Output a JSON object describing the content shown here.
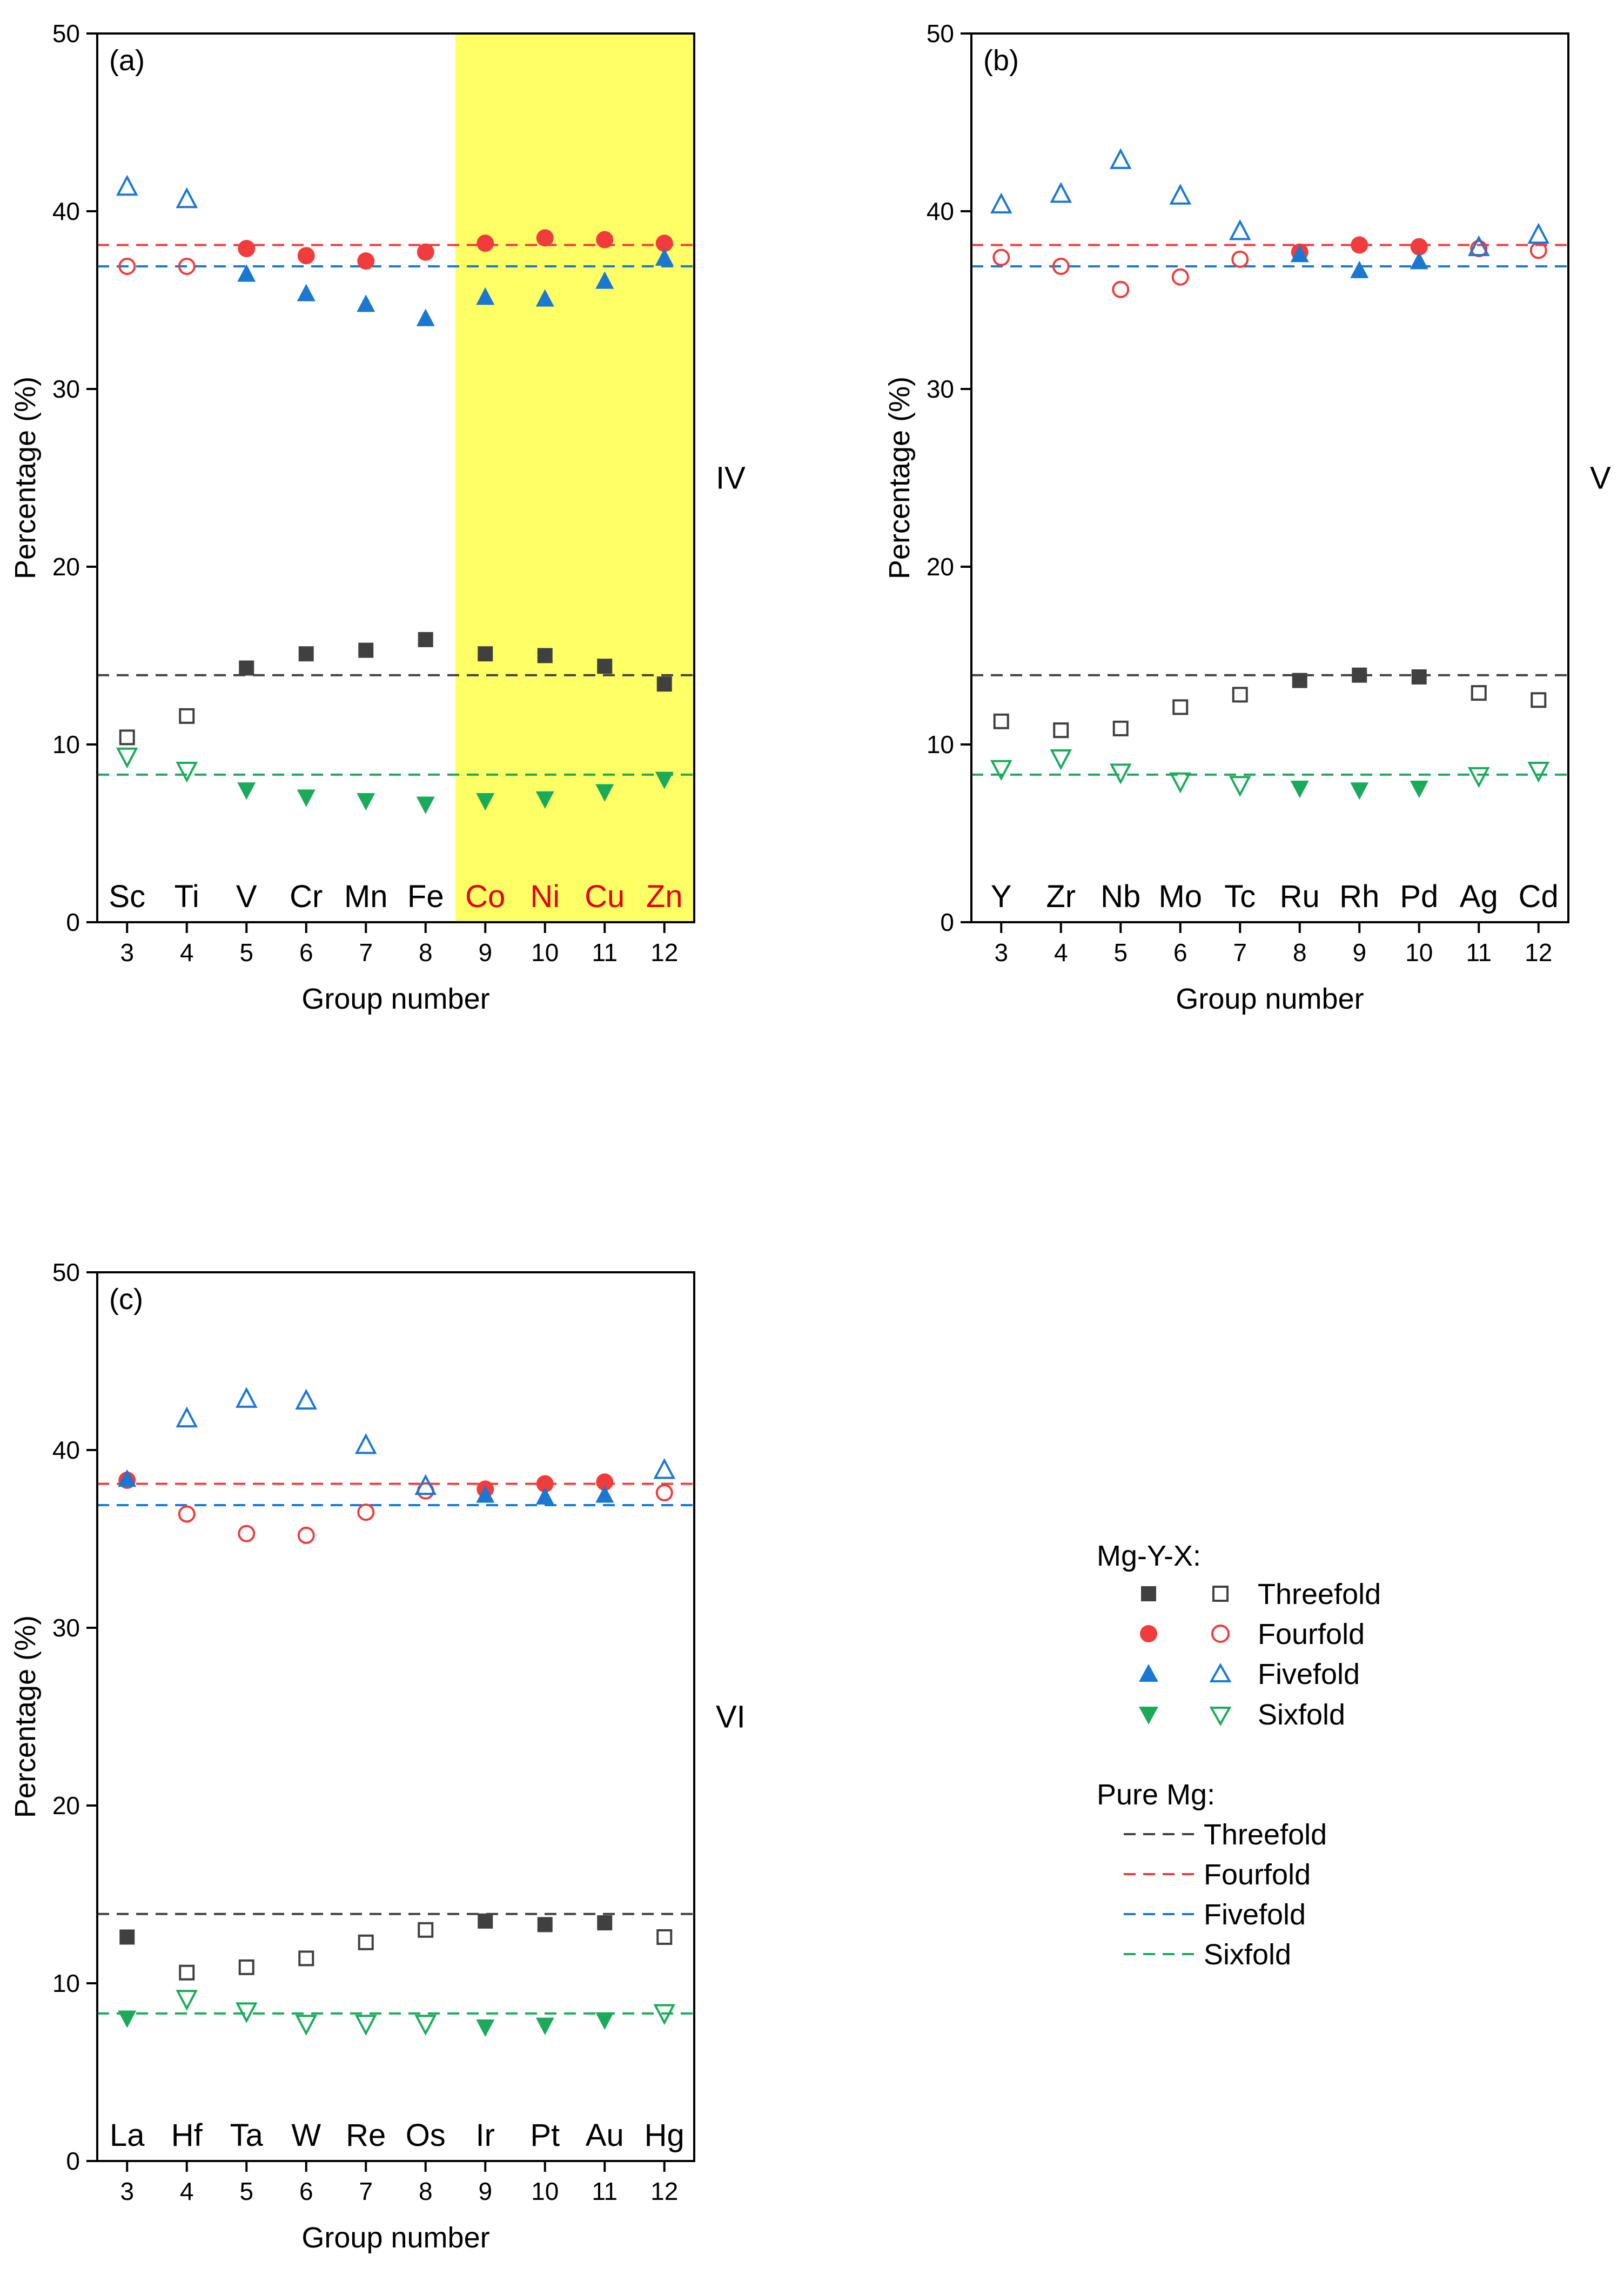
{
  "figure": {
    "legend": {
      "title_doped": "Mg-Y-X:",
      "title_pure": "Pure Mg:",
      "threefold": "Threefold",
      "fourfold": "Fourfold",
      "fivefold": "Fivefold",
      "sixfold": "Sixfold"
    }
  },
  "colors": {
    "threefold": "#404040",
    "fourfold": "#f03c3c",
    "fivefold": "#1a78d2",
    "sixfold": "#1aab5a",
    "highlight": "#ffff66",
    "highlight_text": "#e60000"
  },
  "chart_data": [
    {
      "type": "scatter",
      "panel_label": "(a)",
      "period_label": "IV",
      "xlabel": "Group number",
      "ylabel": "Percentage (%)",
      "xlim": [
        2.5,
        12.5
      ],
      "ylim": [
        0,
        50
      ],
      "x_ticks": [
        3,
        4,
        5,
        6,
        7,
        8,
        9,
        10,
        11,
        12
      ],
      "x_tick_labels": [
        "3",
        "4",
        "5",
        "6",
        "7",
        "8",
        "9",
        "10",
        "11",
        "12"
      ],
      "y_ticks": [
        0,
        10,
        20,
        30,
        40,
        50
      ],
      "y_tick_labels": [
        "0",
        "10",
        "20",
        "30",
        "40",
        "50"
      ],
      "elements": [
        "Sc",
        "Ti",
        "V",
        "Cr",
        "Mn",
        "Fe",
        "Co",
        "Ni",
        "Cu",
        "Zn"
      ],
      "highlight_range": [
        8.5,
        12.5
      ],
      "highlight_elements": [
        "Co",
        "Ni",
        "Cu",
        "Zn"
      ],
      "filled": [
        false,
        false,
        true,
        true,
        true,
        true,
        true,
        true,
        true,
        true
      ],
      "series": [
        {
          "name": "Threefold",
          "values": [
            10.4,
            11.6,
            14.3,
            15.1,
            15.3,
            15.9,
            15.1,
            15.0,
            14.4,
            13.4
          ]
        },
        {
          "name": "Fourfold",
          "values": [
            36.9,
            36.9,
            37.9,
            37.5,
            37.2,
            37.7,
            38.2,
            38.5,
            38.4,
            38.2
          ]
        },
        {
          "name": "Fivefold",
          "values": [
            41.4,
            40.7,
            36.5,
            35.4,
            34.8,
            34.0,
            35.2,
            35.1,
            36.1,
            37.4
          ]
        },
        {
          "name": "Sixfold",
          "values": [
            9.3,
            8.5,
            7.4,
            7.0,
            6.8,
            6.6,
            6.8,
            6.9,
            7.3,
            8.0
          ]
        }
      ],
      "reference_lines": [
        {
          "name": "Threefold",
          "value": 13.9
        },
        {
          "name": "Fourfold",
          "value": 38.1
        },
        {
          "name": "Fivefold",
          "value": 36.9
        },
        {
          "name": "Sixfold",
          "value": 8.3
        }
      ]
    },
    {
      "type": "scatter",
      "panel_label": "(b)",
      "period_label": "V",
      "xlabel": "Group number",
      "ylabel": "Percentage (%)",
      "xlim": [
        2.5,
        12.5
      ],
      "ylim": [
        0,
        50
      ],
      "x_ticks": [
        3,
        4,
        5,
        6,
        7,
        8,
        9,
        10,
        11,
        12
      ],
      "x_tick_labels": [
        "3",
        "4",
        "5",
        "6",
        "7",
        "8",
        "9",
        "10",
        "11",
        "12"
      ],
      "y_ticks": [
        0,
        10,
        20,
        30,
        40,
        50
      ],
      "y_tick_labels": [
        "0",
        "10",
        "20",
        "30",
        "40",
        "50"
      ],
      "elements": [
        "Y",
        "Zr",
        "Nb",
        "Mo",
        "Tc",
        "Ru",
        "Rh",
        "Pd",
        "Ag",
        "Cd"
      ],
      "highlight_range": null,
      "highlight_elements": [],
      "filled": [
        false,
        false,
        false,
        false,
        false,
        true,
        true,
        true,
        false,
        false
      ],
      "series": [
        {
          "name": "Threefold",
          "values": [
            11.3,
            10.8,
            10.9,
            12.1,
            12.8,
            13.6,
            13.9,
            13.8,
            12.9,
            12.5
          ]
        },
        {
          "name": "Fourfold",
          "values": [
            37.4,
            36.9,
            35.6,
            36.3,
            37.3,
            37.7,
            38.1,
            38.0,
            37.9,
            37.8
          ]
        },
        {
          "name": "Fivefold",
          "values": [
            40.4,
            41.0,
            42.9,
            40.9,
            38.9,
            37.6,
            36.7,
            37.2,
            38.0,
            38.7
          ]
        },
        {
          "name": "Sixfold",
          "values": [
            8.6,
            9.2,
            8.4,
            7.9,
            7.7,
            7.5,
            7.4,
            7.5,
            8.2,
            8.5
          ]
        }
      ],
      "reference_lines": [
        {
          "name": "Threefold",
          "value": 13.9
        },
        {
          "name": "Fourfold",
          "value": 38.1
        },
        {
          "name": "Fivefold",
          "value": 36.9
        },
        {
          "name": "Sixfold",
          "value": 8.3
        }
      ]
    },
    {
      "type": "scatter",
      "panel_label": "(c)",
      "period_label": "VI",
      "xlabel": "Group number",
      "ylabel": "Percentage (%)",
      "xlim": [
        2.5,
        12.5
      ],
      "ylim": [
        0,
        50
      ],
      "x_ticks": [
        3,
        4,
        5,
        6,
        7,
        8,
        9,
        10,
        11,
        12
      ],
      "x_tick_labels": [
        "3",
        "4",
        "5",
        "6",
        "7",
        "8",
        "9",
        "10",
        "11",
        "12"
      ],
      "y_ticks": [
        0,
        10,
        20,
        30,
        40,
        50
      ],
      "y_tick_labels": [
        "0",
        "10",
        "20",
        "30",
        "40",
        "50"
      ],
      "elements": [
        "La",
        "Hf",
        "Ta",
        "W",
        "Re",
        "Os",
        "Ir",
        "Pt",
        "Au",
        "Hg"
      ],
      "highlight_range": null,
      "highlight_elements": [],
      "filled": [
        true,
        false,
        false,
        false,
        false,
        false,
        true,
        true,
        true,
        false
      ],
      "series": [
        {
          "name": "Threefold",
          "values": [
            12.6,
            10.6,
            10.9,
            11.4,
            12.3,
            13.0,
            13.5,
            13.3,
            13.4,
            12.6
          ]
        },
        {
          "name": "Fourfold",
          "values": [
            38.3,
            36.4,
            35.3,
            35.2,
            36.5,
            37.7,
            37.8,
            38.1,
            38.2,
            37.6
          ]
        },
        {
          "name": "Fivefold",
          "values": [
            38.4,
            41.8,
            42.9,
            42.8,
            40.3,
            38.0,
            37.5,
            37.4,
            37.5,
            38.9
          ]
        },
        {
          "name": "Sixfold",
          "values": [
            8.0,
            9.1,
            8.4,
            7.7,
            7.7,
            7.7,
            7.5,
            7.6,
            7.9,
            8.3
          ]
        }
      ],
      "reference_lines": [
        {
          "name": "Threefold",
          "value": 13.9
        },
        {
          "name": "Fourfold",
          "value": 38.1
        },
        {
          "name": "Fivefold",
          "value": 36.9
        },
        {
          "name": "Sixfold",
          "value": 8.3
        }
      ]
    }
  ]
}
